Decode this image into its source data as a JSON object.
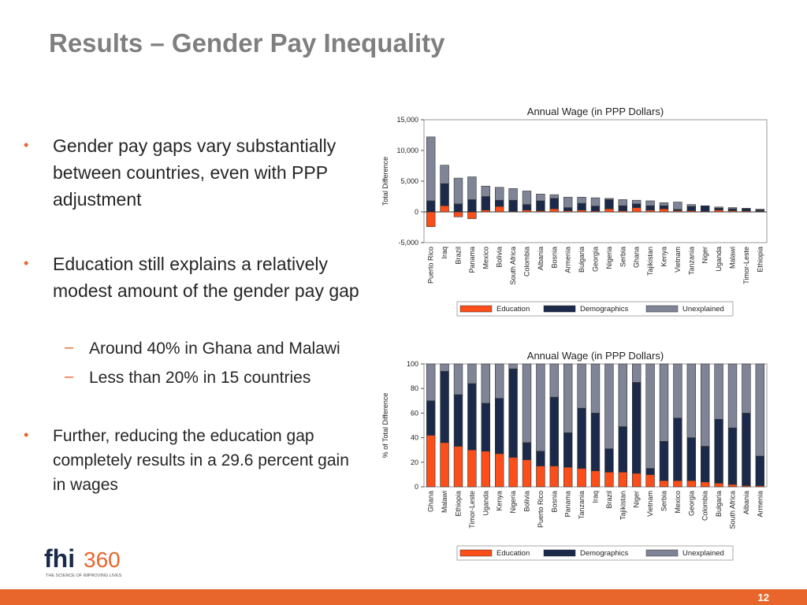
{
  "slide": {
    "title": "Results – Gender Pay Inequality",
    "bullets": [
      "Gender pay gaps vary substantially between countries, even with PPP adjustment",
      "Education still explains a relatively modest amount of the gender pay gap",
      "Further, reducing the education gap completely results in a 29.6 percent gain in wages"
    ],
    "sub_bullets": [
      "Around 40% in Ghana and Malawi",
      "Less than 20% in 15 countries"
    ],
    "logo_text": "fhi360",
    "logo_tagline": "THE SCIENCE OF IMPROVING LIVES",
    "page_number": "12"
  },
  "colors": {
    "education": "#fc4e1a",
    "demographics": "#1b2a4a",
    "unexplained": "#7f8596",
    "accent": "#e8662c",
    "title": "#7f7f7f"
  },
  "chart_data": [
    {
      "type": "bar",
      "stacked": true,
      "title": "Annual Wage (in PPP Dollars)",
      "ylabel": "Total Difference",
      "ylim": [
        -5000,
        15000
      ],
      "yticks": [
        15000,
        10000,
        5000,
        0,
        -5000
      ],
      "ytick_labels": [
        "15,000",
        "10,000",
        "5,000",
        "0",
        "-5,000"
      ],
      "legend": "bottom",
      "categories": [
        "Puerto Rico",
        "Iraq",
        "Brazil",
        "Panama",
        "Mexico",
        "Bolivia",
        "South Africa",
        "Colombia",
        "Albania",
        "Bosnia",
        "Armenia",
        "Bulgaria",
        "Georgia",
        "Nigeria",
        "Serbia",
        "Ghana",
        "Tajikistan",
        "Kenya",
        "Vietnam",
        "Tanzania",
        "Niger",
        "Uganda",
        "Malawi",
        "Timor-Leste",
        "Ethiopia"
      ],
      "series": [
        {
          "name": "Education",
          "values": [
            -2400,
            1000,
            -800,
            -1100,
            300,
            900,
            100,
            300,
            200,
            500,
            200,
            300,
            150,
            500,
            200,
            700,
            300,
            500,
            200,
            200,
            100,
            300,
            200,
            150,
            100
          ]
        },
        {
          "name": "Demographics",
          "values": [
            1800,
            3600,
            1300,
            2000,
            2200,
            1000,
            1800,
            900,
            1600,
            1700,
            500,
            1100,
            800,
            1500,
            800,
            600,
            700,
            500,
            200,
            700,
            900,
            300,
            300,
            350,
            200
          ]
        },
        {
          "name": "Unexplained",
          "values": [
            10400,
            3000,
            4200,
            3700,
            1700,
            2100,
            1900,
            2200,
            1100,
            600,
            1700,
            1000,
            1350,
            200,
            1000,
            600,
            800,
            500,
            1200,
            300,
            0,
            200,
            200,
            100,
            150
          ]
        }
      ]
    },
    {
      "type": "bar",
      "stacked": true,
      "title": "Annual Wage (in PPP Dollars)",
      "ylabel": "% of Total Difference",
      "ylim": [
        0,
        100
      ],
      "yticks": [
        100,
        80,
        60,
        40,
        20,
        0
      ],
      "ytick_labels": [
        "100",
        "80",
        "60",
        "40",
        "20",
        "0"
      ],
      "legend": "bottom",
      "categories": [
        "Ghana",
        "Malawi",
        "Ethiopia",
        "Timor-Leste",
        "Uganda",
        "Kenya",
        "Nigeria",
        "Bolivia",
        "Puerto Rico",
        "Bosnia",
        "Panama",
        "Tanzania",
        "Iraq",
        "Brazil",
        "Tajikistan",
        "Niger",
        "Vietnam",
        "Serbia",
        "Mexico",
        "Georgia",
        "Colombia",
        "Bulgaria",
        "South Africa",
        "Albania",
        "Armenia"
      ],
      "series": [
        {
          "name": "Education",
          "values": [
            42,
            36,
            33,
            30,
            29,
            27,
            24,
            22,
            17,
            17,
            16,
            15,
            13,
            12,
            12,
            11,
            10,
            5,
            5,
            5,
            4,
            3,
            2,
            1,
            1
          ]
        },
        {
          "name": "Demographics",
          "values": [
            28,
            58,
            42,
            54,
            39,
            45,
            72,
            14,
            12,
            56,
            28,
            49,
            47,
            19,
            37,
            74,
            5,
            32,
            51,
            35,
            29,
            52,
            46,
            59,
            24
          ]
        },
        {
          "name": "Unexplained",
          "values": [
            30,
            6,
            25,
            16,
            32,
            28,
            4,
            64,
            71,
            27,
            56,
            36,
            40,
            69,
            51,
            15,
            85,
            63,
            44,
            60,
            67,
            45,
            52,
            40,
            75
          ]
        }
      ]
    }
  ]
}
